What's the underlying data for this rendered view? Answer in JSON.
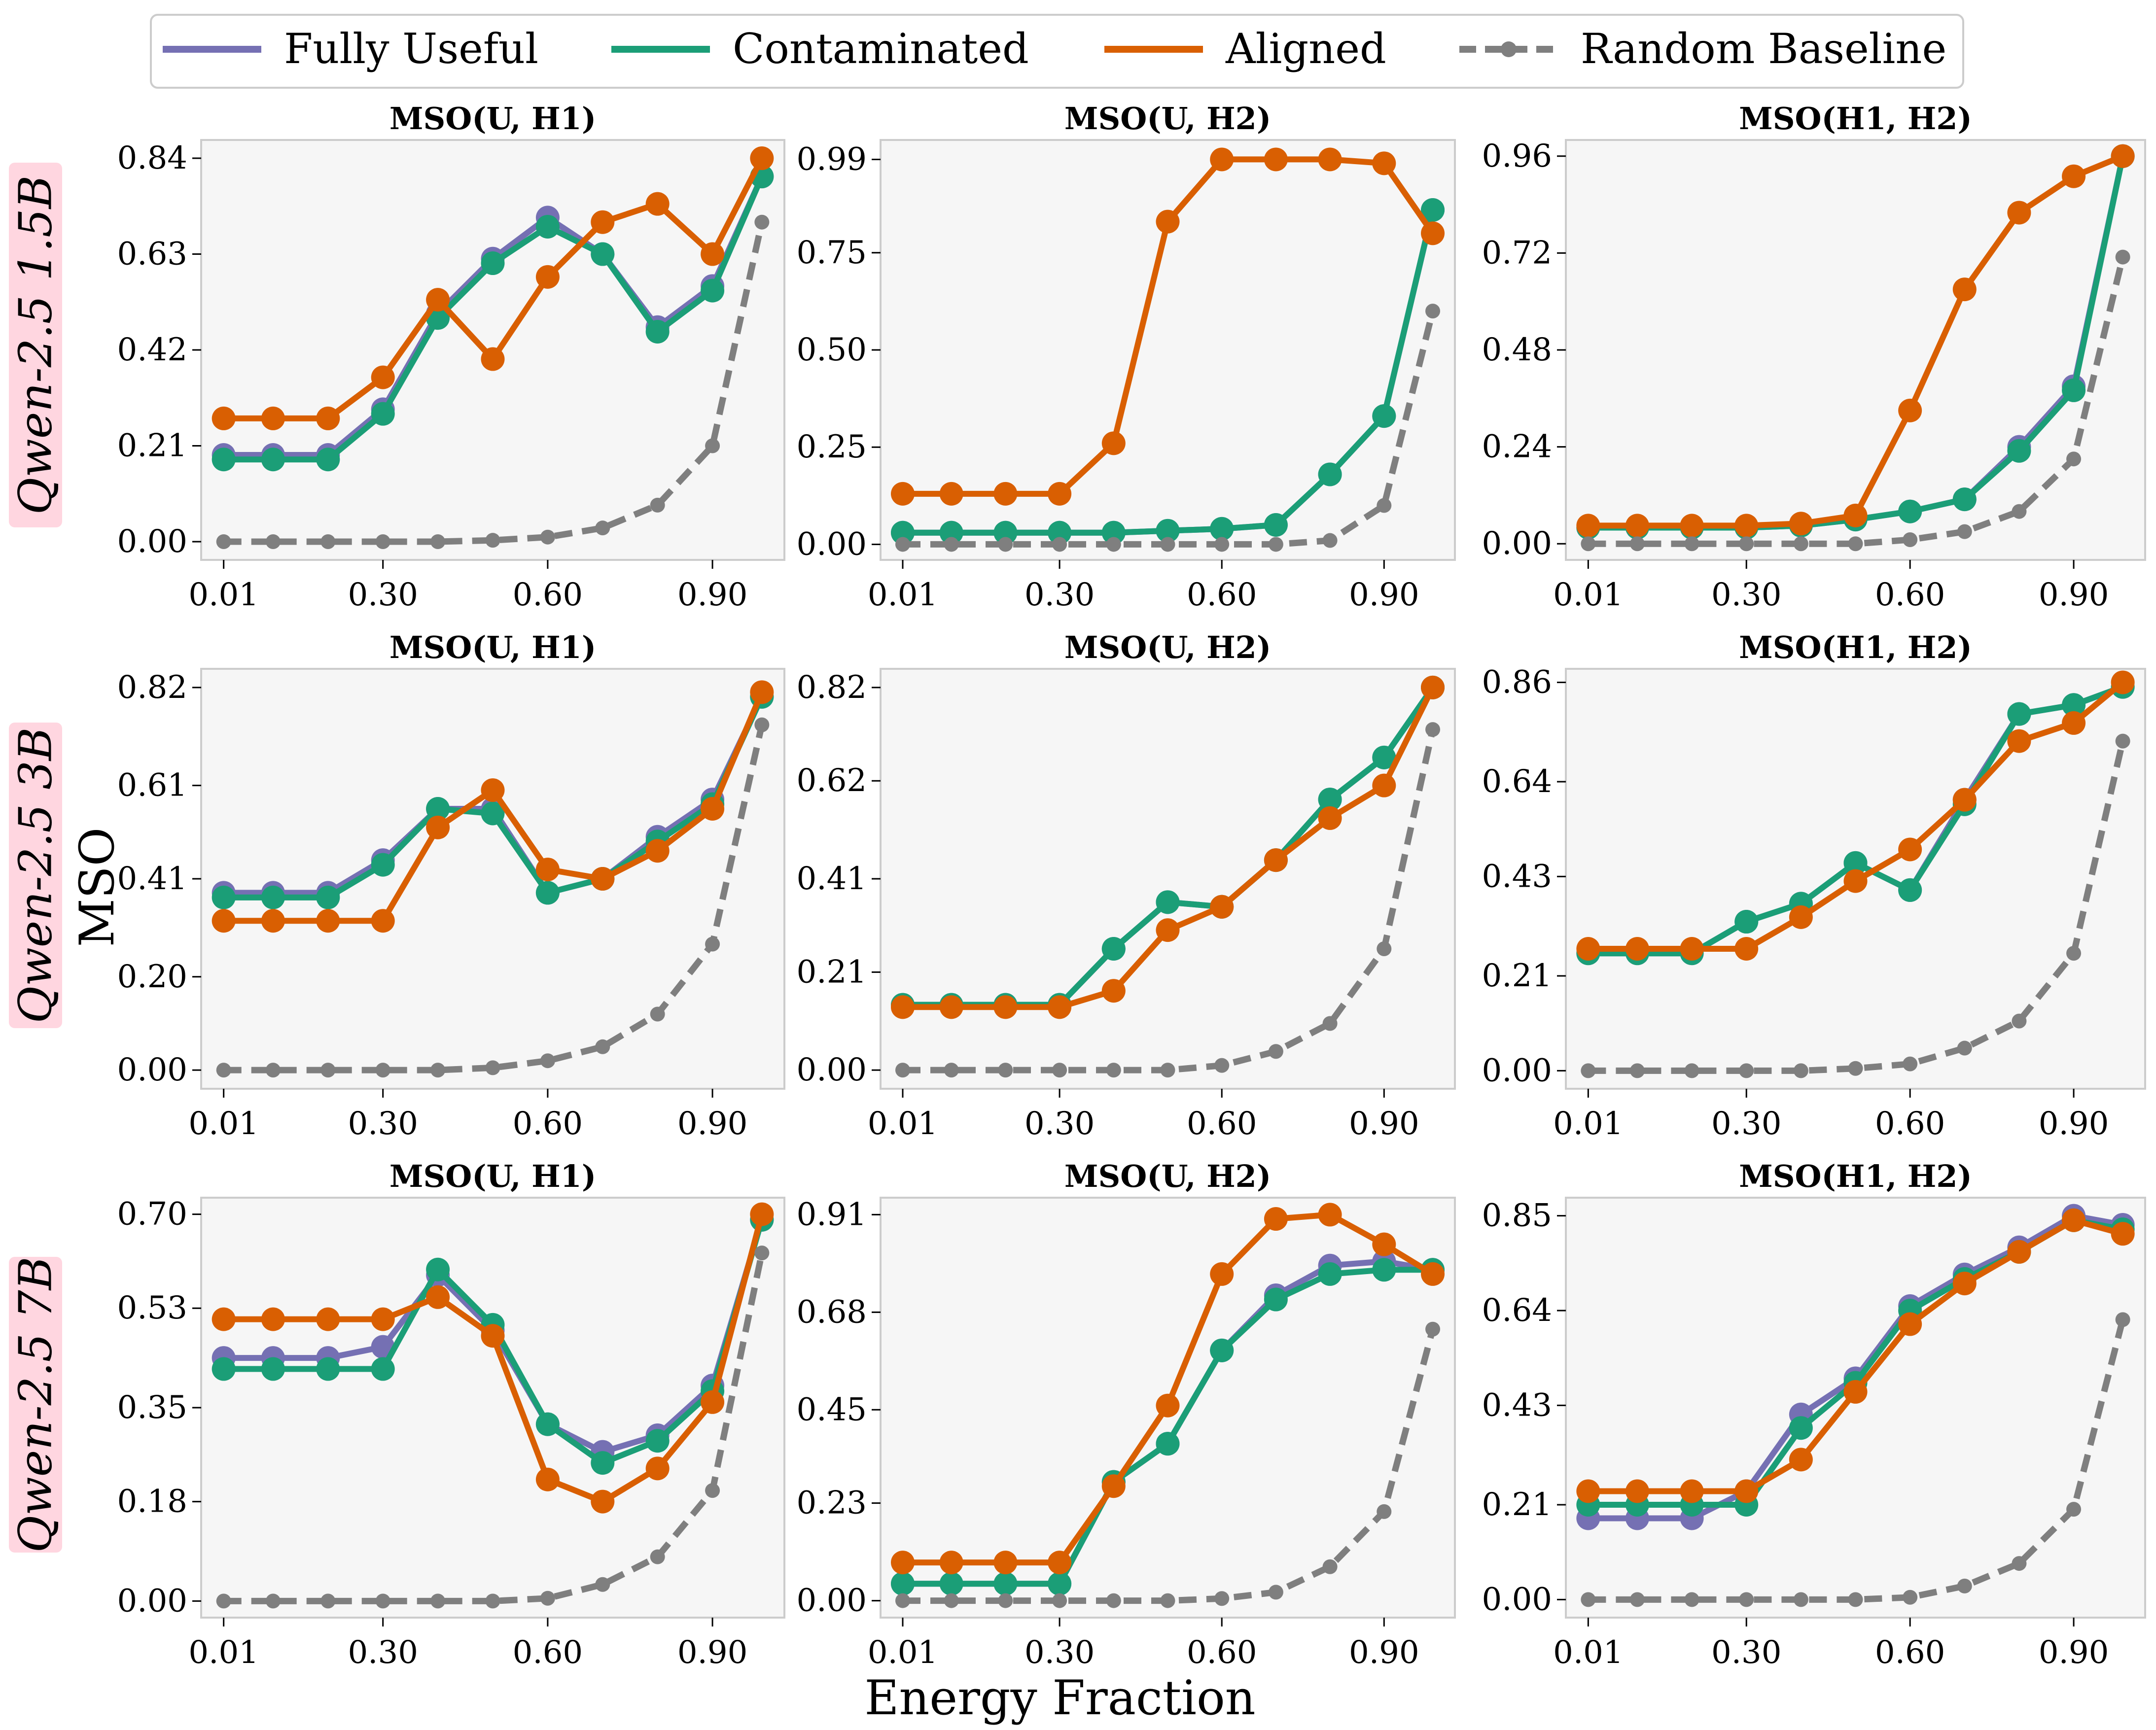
{
  "legend": {
    "items": [
      {
        "label": "Fully Useful",
        "color": "#7570b3",
        "style": "solid"
      },
      {
        "label": "Contaminated",
        "color": "#1b9e77",
        "style": "solid"
      },
      {
        "label": "Aligned",
        "color": "#d95f02",
        "style": "solid"
      },
      {
        "label": "Random Baseline",
        "color": "#7f7f7f",
        "style": "dashed"
      }
    ]
  },
  "xlabel": "Energy Fraction",
  "ylabel": "MSO",
  "rows": [
    "Qwen-2.5 1.5B",
    "Qwen-2.5 3B",
    "Qwen-2.5 7B"
  ],
  "chart_data": [
    {
      "type": "line",
      "row": 0,
      "col": 0,
      "title": "MSO(U, H1)",
      "x": [
        0.01,
        0.1,
        0.2,
        0.3,
        0.4,
        0.5,
        0.6,
        0.7,
        0.8,
        0.9,
        0.99
      ],
      "xticks": [
        "0.01",
        "0.30",
        "0.60",
        "0.90"
      ],
      "yticks": [
        "0.00",
        "0.21",
        "0.42",
        "0.63",
        "0.84"
      ],
      "ylim": [
        -0.04,
        0.88
      ],
      "series": [
        {
          "name": "Fully Useful",
          "values": [
            0.19,
            0.19,
            0.19,
            0.29,
            0.5,
            0.62,
            0.71,
            0.63,
            0.47,
            0.56,
            0.8
          ]
        },
        {
          "name": "Contaminated",
          "values": [
            0.18,
            0.18,
            0.18,
            0.28,
            0.49,
            0.61,
            0.69,
            0.63,
            0.46,
            0.55,
            0.8
          ]
        },
        {
          "name": "Aligned",
          "values": [
            0.27,
            0.27,
            0.27,
            0.36,
            0.53,
            0.4,
            0.58,
            0.7,
            0.74,
            0.63,
            0.84
          ]
        },
        {
          "name": "Random Baseline",
          "values": [
            0.0,
            0.0,
            0.0,
            0.0,
            0.0,
            0.003,
            0.01,
            0.03,
            0.08,
            0.21,
            0.7
          ]
        }
      ]
    },
    {
      "type": "line",
      "row": 0,
      "col": 1,
      "title": "MSO(U, H2)",
      "x": [
        0.01,
        0.1,
        0.2,
        0.3,
        0.4,
        0.5,
        0.6,
        0.7,
        0.8,
        0.9,
        0.99
      ],
      "xticks": [
        "0.01",
        "0.30",
        "0.60",
        "0.90"
      ],
      "yticks": [
        "0.00",
        "0.25",
        "0.50",
        "0.75",
        "0.99"
      ],
      "ylim": [
        -0.04,
        1.04
      ],
      "series": [
        {
          "name": "Fully Useful",
          "values": [
            0.03,
            0.03,
            0.03,
            0.03,
            0.03,
            0.035,
            0.04,
            0.05,
            0.18,
            0.33,
            0.86
          ]
        },
        {
          "name": "Contaminated",
          "values": [
            0.03,
            0.03,
            0.03,
            0.03,
            0.03,
            0.035,
            0.04,
            0.05,
            0.18,
            0.33,
            0.86
          ]
        },
        {
          "name": "Aligned",
          "values": [
            0.13,
            0.13,
            0.13,
            0.13,
            0.26,
            0.83,
            0.99,
            0.99,
            0.99,
            0.98,
            0.8
          ]
        },
        {
          "name": "Random Baseline",
          "values": [
            0.0,
            0.0,
            0.0,
            0.0,
            0.0,
            0.0,
            0.0,
            0.0,
            0.01,
            0.1,
            0.6
          ]
        }
      ]
    },
    {
      "type": "line",
      "row": 0,
      "col": 2,
      "title": "MSO(H1, H2)",
      "x": [
        0.01,
        0.1,
        0.2,
        0.3,
        0.4,
        0.5,
        0.6,
        0.7,
        0.8,
        0.9,
        0.99
      ],
      "xticks": [
        "0.01",
        "0.30",
        "0.60",
        "0.90"
      ],
      "yticks": [
        "0.00",
        "0.24",
        "0.48",
        "0.72",
        "0.96"
      ],
      "ylim": [
        -0.04,
        1.0
      ],
      "series": [
        {
          "name": "Fully Useful",
          "values": [
            0.04,
            0.04,
            0.04,
            0.04,
            0.045,
            0.06,
            0.08,
            0.11,
            0.24,
            0.39,
            0.96
          ]
        },
        {
          "name": "Contaminated",
          "values": [
            0.04,
            0.04,
            0.04,
            0.04,
            0.045,
            0.06,
            0.08,
            0.11,
            0.23,
            0.38,
            0.96
          ]
        },
        {
          "name": "Aligned",
          "values": [
            0.045,
            0.045,
            0.045,
            0.045,
            0.05,
            0.07,
            0.33,
            0.63,
            0.82,
            0.91,
            0.96
          ]
        },
        {
          "name": "Random Baseline",
          "values": [
            0.0,
            0.0,
            0.0,
            0.0,
            0.0,
            0.0,
            0.01,
            0.03,
            0.08,
            0.21,
            0.71
          ]
        }
      ]
    },
    {
      "type": "line",
      "row": 1,
      "col": 0,
      "title": "MSO(U, H1)",
      "x": [
        0.01,
        0.1,
        0.2,
        0.3,
        0.4,
        0.5,
        0.6,
        0.7,
        0.8,
        0.9,
        0.99
      ],
      "xticks": [
        "0.01",
        "0.30",
        "0.60",
        "0.90"
      ],
      "yticks": [
        "0.00",
        "0.20",
        "0.41",
        "0.61",
        "0.82"
      ],
      "ylim": [
        -0.04,
        0.86
      ],
      "series": [
        {
          "name": "Fully Useful",
          "values": [
            0.38,
            0.38,
            0.38,
            0.45,
            0.56,
            0.56,
            0.38,
            0.41,
            0.5,
            0.58,
            0.8
          ]
        },
        {
          "name": "Contaminated",
          "values": [
            0.37,
            0.37,
            0.37,
            0.44,
            0.56,
            0.55,
            0.38,
            0.41,
            0.49,
            0.57,
            0.8
          ]
        },
        {
          "name": "Aligned",
          "values": [
            0.32,
            0.32,
            0.32,
            0.32,
            0.52,
            0.6,
            0.43,
            0.41,
            0.47,
            0.56,
            0.81
          ]
        },
        {
          "name": "Random Baseline",
          "values": [
            0.0,
            0.0,
            0.0,
            0.0,
            0.0,
            0.005,
            0.02,
            0.05,
            0.12,
            0.27,
            0.74
          ]
        }
      ]
    },
    {
      "type": "line",
      "row": 1,
      "col": 1,
      "title": "MSO(U, H2)",
      "x": [
        0.01,
        0.1,
        0.2,
        0.3,
        0.4,
        0.5,
        0.6,
        0.7,
        0.8,
        0.9,
        0.99
      ],
      "xticks": [
        "0.01",
        "0.30",
        "0.60",
        "0.90"
      ],
      "yticks": [
        "0.00",
        "0.21",
        "0.41",
        "0.62",
        "0.82"
      ],
      "ylim": [
        -0.04,
        0.86
      ],
      "series": [
        {
          "name": "Fully Useful",
          "values": [
            0.14,
            0.14,
            0.14,
            0.14,
            0.26,
            0.36,
            0.35,
            0.45,
            0.58,
            0.67,
            0.82
          ]
        },
        {
          "name": "Contaminated",
          "values": [
            0.14,
            0.14,
            0.14,
            0.14,
            0.26,
            0.36,
            0.35,
            0.45,
            0.58,
            0.67,
            0.82
          ]
        },
        {
          "name": "Aligned",
          "values": [
            0.135,
            0.135,
            0.135,
            0.135,
            0.17,
            0.3,
            0.35,
            0.45,
            0.54,
            0.61,
            0.82
          ]
        },
        {
          "name": "Random Baseline",
          "values": [
            0.0,
            0.0,
            0.0,
            0.0,
            0.0,
            0.0,
            0.01,
            0.04,
            0.1,
            0.26,
            0.73
          ]
        }
      ]
    },
    {
      "type": "line",
      "row": 1,
      "col": 2,
      "title": "MSO(H1, H2)",
      "x": [
        0.01,
        0.1,
        0.2,
        0.3,
        0.4,
        0.5,
        0.6,
        0.7,
        0.8,
        0.9,
        0.99
      ],
      "xticks": [
        "0.01",
        "0.30",
        "0.60",
        "0.90"
      ],
      "yticks": [
        "0.00",
        "0.21",
        "0.43",
        "0.64",
        "0.86"
      ],
      "ylim": [
        -0.04,
        0.89
      ],
      "series": [
        {
          "name": "Fully Useful",
          "values": [
            0.26,
            0.26,
            0.26,
            0.33,
            0.37,
            0.46,
            0.4,
            0.6,
            0.79,
            0.81,
            0.85
          ]
        },
        {
          "name": "Contaminated",
          "values": [
            0.26,
            0.26,
            0.26,
            0.33,
            0.37,
            0.46,
            0.4,
            0.59,
            0.79,
            0.81,
            0.85
          ]
        },
        {
          "name": "Aligned",
          "values": [
            0.27,
            0.27,
            0.27,
            0.27,
            0.34,
            0.42,
            0.49,
            0.6,
            0.73,
            0.77,
            0.86
          ]
        },
        {
          "name": "Random Baseline",
          "values": [
            0.0,
            0.0,
            0.0,
            0.0,
            0.0,
            0.005,
            0.015,
            0.05,
            0.11,
            0.26,
            0.73
          ]
        }
      ]
    },
    {
      "type": "line",
      "row": 2,
      "col": 0,
      "title": "MSO(U, H1)",
      "x": [
        0.01,
        0.1,
        0.2,
        0.3,
        0.4,
        0.5,
        0.6,
        0.7,
        0.8,
        0.9,
        0.99
      ],
      "xticks": [
        "0.01",
        "0.30",
        "0.60",
        "0.90"
      ],
      "yticks": [
        "0.00",
        "0.18",
        "0.35",
        "0.53",
        "0.70"
      ],
      "ylim": [
        -0.03,
        0.73
      ],
      "series": [
        {
          "name": "Fully Useful",
          "values": [
            0.44,
            0.44,
            0.44,
            0.46,
            0.59,
            0.49,
            0.32,
            0.27,
            0.3,
            0.39,
            0.69
          ]
        },
        {
          "name": "Contaminated",
          "values": [
            0.42,
            0.42,
            0.42,
            0.42,
            0.6,
            0.5,
            0.32,
            0.25,
            0.29,
            0.38,
            0.69
          ]
        },
        {
          "name": "Aligned",
          "values": [
            0.51,
            0.51,
            0.51,
            0.51,
            0.55,
            0.48,
            0.22,
            0.18,
            0.24,
            0.36,
            0.7
          ]
        },
        {
          "name": "Random Baseline",
          "values": [
            0.0,
            0.0,
            0.0,
            0.0,
            0.0,
            0.0,
            0.005,
            0.03,
            0.08,
            0.2,
            0.63
          ]
        }
      ]
    },
    {
      "type": "line",
      "row": 2,
      "col": 1,
      "title": "MSO(U, H2)",
      "x": [
        0.01,
        0.1,
        0.2,
        0.3,
        0.4,
        0.5,
        0.6,
        0.7,
        0.8,
        0.9,
        0.99
      ],
      "xticks": [
        "0.01",
        "0.30",
        "0.60",
        "0.90"
      ],
      "yticks": [
        "0.00",
        "0.23",
        "0.45",
        "0.68",
        "0.91"
      ],
      "ylim": [
        -0.04,
        0.95
      ],
      "series": [
        {
          "name": "Fully Useful",
          "values": [
            0.04,
            0.04,
            0.04,
            0.04,
            0.28,
            0.37,
            0.59,
            0.72,
            0.79,
            0.8,
            0.78
          ]
        },
        {
          "name": "Contaminated",
          "values": [
            0.04,
            0.04,
            0.04,
            0.04,
            0.28,
            0.37,
            0.59,
            0.71,
            0.77,
            0.78,
            0.78
          ]
        },
        {
          "name": "Aligned",
          "values": [
            0.09,
            0.09,
            0.09,
            0.09,
            0.27,
            0.46,
            0.77,
            0.9,
            0.91,
            0.84,
            0.77
          ]
        },
        {
          "name": "Random Baseline",
          "values": [
            0.0,
            0.0,
            0.0,
            0.0,
            0.0,
            0.0,
            0.005,
            0.02,
            0.08,
            0.21,
            0.64
          ]
        }
      ]
    },
    {
      "type": "line",
      "row": 2,
      "col": 2,
      "title": "MSO(H1, H2)",
      "x": [
        0.01,
        0.1,
        0.2,
        0.3,
        0.4,
        0.5,
        0.6,
        0.7,
        0.8,
        0.9,
        0.99
      ],
      "xticks": [
        "0.01",
        "0.30",
        "0.60",
        "0.90"
      ],
      "yticks": [
        "0.00",
        "0.21",
        "0.43",
        "0.64",
        "0.85"
      ],
      "ylim": [
        -0.04,
        0.89
      ],
      "series": [
        {
          "name": "Fully Useful",
          "values": [
            0.18,
            0.18,
            0.18,
            0.24,
            0.41,
            0.49,
            0.65,
            0.72,
            0.78,
            0.85,
            0.83
          ]
        },
        {
          "name": "Contaminated",
          "values": [
            0.21,
            0.21,
            0.21,
            0.21,
            0.38,
            0.48,
            0.64,
            0.71,
            0.77,
            0.84,
            0.82
          ]
        },
        {
          "name": "Aligned",
          "values": [
            0.24,
            0.24,
            0.24,
            0.24,
            0.31,
            0.46,
            0.61,
            0.7,
            0.77,
            0.84,
            0.81
          ]
        },
        {
          "name": "Random Baseline",
          "values": [
            0.0,
            0.0,
            0.0,
            0.0,
            0.0,
            0.0,
            0.005,
            0.03,
            0.08,
            0.2,
            0.62
          ]
        }
      ]
    }
  ]
}
